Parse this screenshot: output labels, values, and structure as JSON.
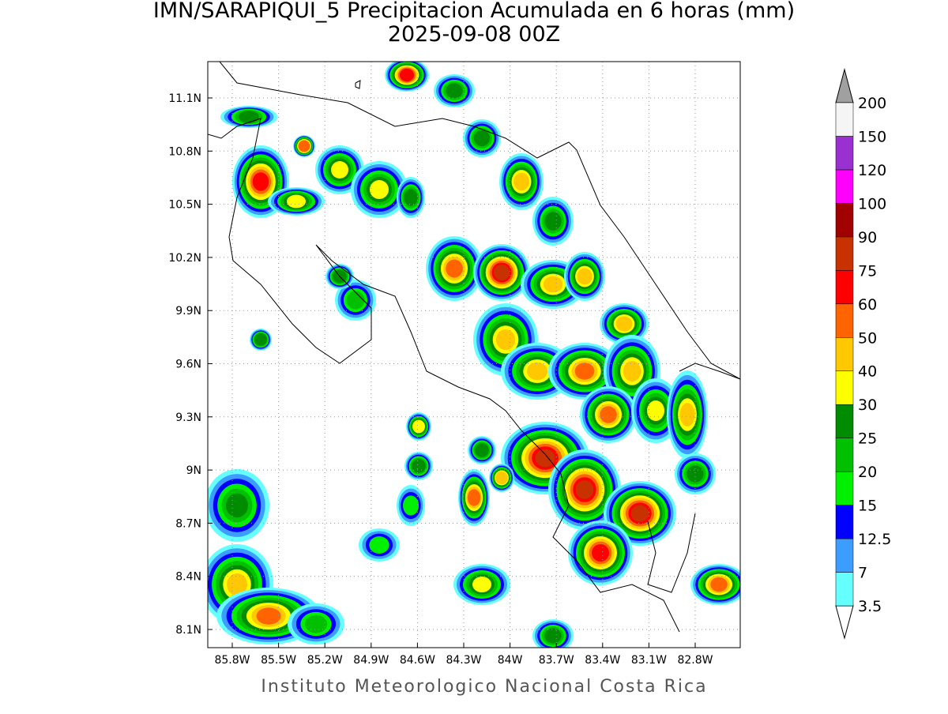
{
  "header": {
    "title": "IMN/SARAPIQUI_5 Precipitacion Acumulada en 6 horas (mm)",
    "subtitle": "2025-09-08 00Z"
  },
  "map": {
    "lat_labels": [
      "11.1N",
      "10.8N",
      "10.5N",
      "10.2N",
      "9.9N",
      "9.6N",
      "9.3N",
      "9N",
      "8.7N",
      "8.4N",
      "8.1N"
    ],
    "lon_labels": [
      "85.8W",
      "85.5W",
      "85.2W",
      "84.9W",
      "84.6W",
      "84.3W",
      "84W",
      "83.7W",
      "83.4W",
      "83.1W",
      "82.8W"
    ]
  },
  "colorbar": {
    "labels": [
      3.5,
      7,
      12.5,
      15,
      20,
      25,
      30,
      40,
      50,
      60,
      75,
      90,
      100,
      120,
      150,
      200
    ],
    "colors": [
      "#66ffff",
      "#3c9cff",
      "#0000ff",
      "#00f000",
      "#00c000",
      "#008c00",
      "#ffff00",
      "#ffc800",
      "#ff6400",
      "#ff0000",
      "#c83200",
      "#a00000",
      "#ff00ff",
      "#9b30d0",
      "#f5f5f5"
    ]
  },
  "footer": "Instituto Meteorologico Nacional Costa Rica"
}
